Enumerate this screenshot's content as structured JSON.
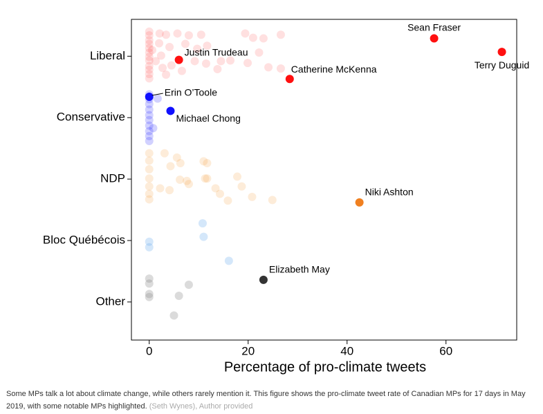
{
  "chart_data": {
    "type": "scatter",
    "x_label": "Percentage of pro-climate tweets",
    "xlim": [
      -3.6,
      74.3
    ],
    "xticks": [
      0,
      20,
      40,
      60
    ],
    "ylim": [
      0.38,
      5.6
    ],
    "yticks": [
      {
        "value": 1,
        "label": "Other"
      },
      {
        "value": 2,
        "label": "Bloc Québécois"
      },
      {
        "value": 3,
        "label": "NDP"
      },
      {
        "value": 4,
        "label": "Conservative"
      },
      {
        "value": 5,
        "label": "Liberal"
      }
    ],
    "series": [
      {
        "color": "#ff3030",
        "opacity": 0.15,
        "x": [
          0,
          0,
          0,
          0,
          0,
          0,
          0,
          0,
          0,
          0,
          0,
          0,
          2.1,
          3.4,
          5.7,
          8.0,
          10.5,
          2.0,
          4.1,
          7.3,
          9.7,
          11.7,
          1.3,
          2.7,
          4.5,
          6.6,
          9.2,
          11.5,
          13.8,
          16.4,
          19.4,
          21.0,
          23.1,
          26.6,
          22.2,
          19.9,
          24.1,
          26.6,
          3.4,
          14.5,
          0.6,
          2.4
        ],
        "y": [
          5.4,
          5.34,
          5.26,
          5.2,
          5.13,
          5.06,
          4.99,
          4.93,
          4.84,
          4.78,
          4.71,
          4.64,
          5.37,
          5.35,
          5.37,
          5.34,
          5.35,
          5.21,
          5.15,
          5.2,
          5.12,
          5.17,
          4.92,
          4.81,
          4.85,
          4.76,
          4.92,
          4.88,
          4.79,
          4.93,
          5.37,
          5.3,
          5.29,
          5.35,
          5.06,
          4.89,
          4.82,
          4.8,
          4.7,
          4.92,
          5.1,
          5.01
        ]
      },
      {
        "color": "#1a1aff",
        "opacity": 0.2,
        "x": [
          0,
          0,
          0,
          0,
          0,
          0,
          0,
          0,
          0,
          0,
          1.7,
          0.8
        ],
        "y": [
          4.38,
          4.3,
          4.22,
          4.13,
          4.04,
          3.96,
          3.87,
          3.78,
          3.7,
          3.62,
          4.31,
          3.83
        ]
      },
      {
        "color": "#f5a040",
        "opacity": 0.2,
        "x": [
          0,
          0,
          0,
          0,
          0,
          0,
          0,
          3.1,
          5.6,
          6.3,
          4.3,
          11.0,
          11.7,
          7.6,
          8.0,
          2.2,
          4.1,
          6.2,
          11.3,
          13.4,
          14.3,
          15.9,
          17.8,
          18.7,
          20.8,
          24.9,
          11.7
        ],
        "y": [
          3.42,
          3.3,
          3.16,
          3.01,
          2.88,
          2.76,
          2.67,
          3.42,
          3.35,
          3.26,
          3.21,
          3.29,
          3.26,
          2.97,
          2.92,
          2.85,
          2.82,
          2.99,
          3.01,
          2.85,
          2.76,
          2.65,
          3.04,
          2.88,
          2.71,
          2.66,
          3.01
        ]
      },
      {
        "color": "#70b0f0",
        "opacity": 0.3,
        "x": [
          0,
          0,
          10.8,
          11.0,
          16.1
        ],
        "y": [
          1.98,
          1.89,
          2.28,
          2.06,
          1.67
        ]
      },
      {
        "color": "#888888",
        "opacity": 0.3,
        "x": [
          0,
          0,
          0,
          0,
          8.0,
          6.0,
          5.0
        ],
        "y": [
          1.38,
          1.3,
          1.13,
          1.08,
          1.28,
          1.1,
          0.78
        ]
      }
    ],
    "highlights": [
      {
        "label": "Justin Trudeau",
        "x": 6.0,
        "y": 4.94,
        "color": "#ff1010"
      },
      {
        "label": "Sean Fraser",
        "x": 57.6,
        "y": 5.29,
        "color": "#ff1010"
      },
      {
        "label": "Terry Duguid",
        "x": 71.3,
        "y": 5.07,
        "color": "#ff1010"
      },
      {
        "label": "Catherine McKenna",
        "x": 28.4,
        "y": 4.63,
        "color": "#ff1010"
      },
      {
        "label": "Erin O’Toole",
        "x": 0,
        "y": 4.34,
        "color": "#1010ff"
      },
      {
        "label": "Michael Chong",
        "x": 4.3,
        "y": 4.11,
        "color": "#1010ff"
      },
      {
        "label": "Niki Ashton",
        "x": 42.5,
        "y": 2.62,
        "color": "#f08020"
      },
      {
        "label": "Elizabeth May",
        "x": 23.1,
        "y": 1.36,
        "color": "#333333"
      }
    ]
  },
  "caption": "Some MPs talk a lot about climate change, while others rarely mention it. This figure shows the pro-climate tweet rate of Canadian MPs for 17 days in May 2019, with some notable MPs highlighted.",
  "credit": "(Seth Wynes), Author provided"
}
